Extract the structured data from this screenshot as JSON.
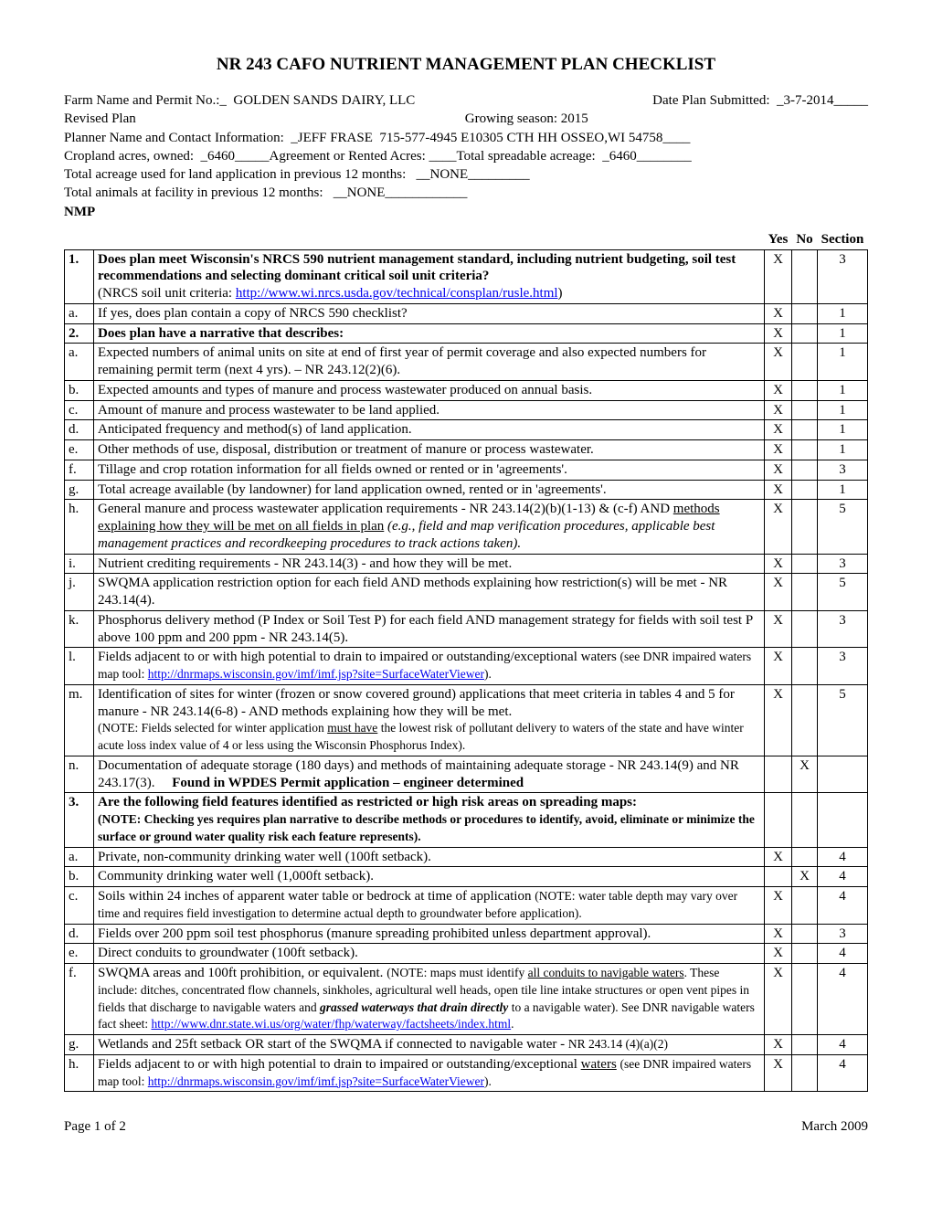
{
  "title": "NR 243 CAFO NUTRIENT MANAGEMENT PLAN CHECKLIST",
  "header": {
    "farm_label": "Farm Name and Permit No.:_  ",
    "farm_value": "GOLDEN SANDS DAIRY, LLC",
    "date_label": "Date Plan Submitted:  ",
    "date_value": "_3-7-2014_____",
    "revised_label": "Revised Plan",
    "growing_label": "Growing season: ",
    "growing_value": "2015",
    "planner_label": "Planner Name and Contact Information:  ",
    "planner_value": "_JEFF FRASE  715-577-4945 E10305 CTH HH OSSEO,WI 54758____",
    "crop_owned_label": "Cropland acres, owned:  ",
    "crop_owned_value": "_6460_____",
    "agreement_label": "Agreement or Rented Acres: ____",
    "spread_label": "Total spreadable acreage:  ",
    "spread_value": "_6460________",
    "total_acreage_label": "Total acreage used for land application in previous 12 months:   ",
    "total_acreage_value": "__NONE_________",
    "total_animals_label": "Total animals at facility in previous 12 months:   ",
    "total_animals_value": "__NONE____________",
    "nmp_label": "NMP"
  },
  "col_headers": {
    "yes": "Yes",
    "no": "No",
    "section": "Section"
  },
  "rows": [
    {
      "idx": "1.",
      "bold": true,
      "yes": "X",
      "no": "",
      "sec": "3",
      "html": "<span class='bold'>Does plan meet Wisconsin's NRCS 590 nutrient management standard, including nutrient budgeting, soil test recommendations and selecting dominant critical soil unit criteria?</span><br> (NRCS soil unit criteria: <a href='#'>http://www.wi.nrcs.usda.gov/technical/consplan/rusle.html</a>)"
    },
    {
      "idx": "a.",
      "yes": "X",
      "no": "",
      "sec": "1",
      "html": "If yes, does plan contain a copy of NRCS 590 checklist?"
    },
    {
      "idx": "2.",
      "bold": true,
      "yes": "X",
      "no": "",
      "sec": "1",
      "html": "<span class='bold'>Does plan have a narrative that describes:</span>"
    },
    {
      "idx": "a.",
      "yes": "X",
      "no": "",
      "sec": "1",
      "html": "Expected numbers of animal units on site at end of first year of permit coverage and also expected numbers for remaining permit term (next 4 yrs). – NR 243.12(2)(6)."
    },
    {
      "idx": "b.",
      "yes": "X",
      "no": "",
      "sec": "1",
      "html": "Expected amounts and types of manure and process wastewater produced on annual basis."
    },
    {
      "idx": "c.",
      "yes": "X",
      "no": "",
      "sec": "1",
      "html": "Amount of manure and process wastewater to be land applied."
    },
    {
      "idx": "d.",
      "yes": "X",
      "no": "",
      "sec": "1",
      "html": "Anticipated frequency and method(s) of land application."
    },
    {
      "idx": "e.",
      "yes": "X",
      "no": "",
      "sec": "1",
      "html": "Other methods of use, disposal, distribution or treatment of manure or process wastewater."
    },
    {
      "idx": "f.",
      "yes": "X",
      "no": "",
      "sec": "3",
      "html": "Tillage and crop rotation information for all fields owned or rented or in 'agreements'."
    },
    {
      "idx": "g.",
      "yes": "X",
      "no": "",
      "sec": "1",
      "html": "Total acreage available (by landowner) for land application owned, rented or in 'agreements'."
    },
    {
      "idx": "h.",
      "yes": "X",
      "no": "",
      "sec": "5",
      "html": "General manure and process wastewater application requirements - NR 243.14(2)(b)(1-13) &amp; (c-f) AND <span class='u'>methods explaining how they will be met on all fields in plan</span> <em>(e.g., field and map verification procedures, applicable best management practices and recordkeeping procedures to track actions taken).</em>"
    },
    {
      "idx": "i.",
      "yes": "X",
      "no": "",
      "sec": "3",
      "html": "Nutrient crediting requirements - NR 243.14(3) - and how they will be met."
    },
    {
      "idx": "j.",
      "yes": "X",
      "no": "",
      "sec": "5",
      "html": "SWQMA application restriction option for each field AND methods explaining how restriction(s) will be met - NR 243.14(4)."
    },
    {
      "idx": "k.",
      "yes": "X",
      "no": "",
      "sec": "3",
      "html": "Phosphorus delivery method (P Index or Soil Test P) for each field AND management strategy for fields with soil test P above 100 ppm and 200 ppm - NR 243.14(5)."
    },
    {
      "idx": "l.",
      "yes": "X",
      "no": "",
      "sec": "3",
      "html": "Fields adjacent to or with high potential to drain to impaired or outstanding/exceptional waters <span class='note'>(see DNR impaired waters map tool: <a href='#'>http://dnrmaps.wisconsin.gov/imf/imf.jsp?site=SurfaceWaterViewer</a>).</span>"
    },
    {
      "idx": "m.",
      "yes": "X",
      "no": "",
      "sec": "5",
      "html": "Identification of sites for winter (frozen or snow covered ground) applications that meet criteria in tables 4 and 5 for manure - NR 243.14(6-8) - AND methods explaining how they will be met.<br><span class='note'>(NOTE: Fields selected for winter application <span class='u'>must have</span> the lowest risk of pollutant delivery to waters of the state and have winter acute loss index value of 4 or less using the Wisconsin Phosphorus Index).</span>"
    },
    {
      "idx": "n.",
      "yes": "",
      "no": "X",
      "sec": "",
      "html": "Documentation of adequate storage (180 days) and methods of maintaining adequate storage - NR 243.14(9) and NR 243.17(3). &nbsp;&nbsp;&nbsp; <span class='bold'>Found in WPDES Permit application – engineer determined</span>"
    },
    {
      "idx": "3.",
      "bold": true,
      "yes": "",
      "no": "",
      "sec": "",
      "html": "<span class='bold'>Are the following field features identified as restricted or high risk areas on spreading maps:<br><span class='note'>(NOTE: Checking yes requires plan narrative to describe methods or procedures to identify, avoid, eliminate or minimize the surface or ground water quality risk each feature represents).</span></span>"
    },
    {
      "idx": "a.",
      "yes": "X",
      "no": "",
      "sec": "4",
      "html": "Private, non-community drinking water well (100ft setback)."
    },
    {
      "idx": "b.",
      "yes": "",
      "no": "X",
      "sec": "4",
      "html": "Community drinking water well (1,000ft setback)."
    },
    {
      "idx": "c.",
      "yes": "X",
      "no": "",
      "sec": "4",
      "html": "Soils within 24 inches of apparent water table or bedrock at time of application <span class='note'>(NOTE: water table depth may vary over time and requires field investigation to determine actual depth to groundwater before application).</span>"
    },
    {
      "idx": "d.",
      "yes": "X",
      "no": "",
      "sec": "3",
      "html": "Fields over 200 ppm soil test phosphorus (manure spreading prohibited unless department approval)."
    },
    {
      "idx": "e.",
      "yes": "X",
      "no": "",
      "sec": "4",
      "html": "Direct conduits to groundwater (100ft setback)."
    },
    {
      "idx": "f.",
      "yes": "X",
      "no": "",
      "sec": "4",
      "html": "SWQMA areas and 100ft prohibition, or equivalent. <span class='note'>(NOTE: maps must identify <span class='u'>all conduits to navigable waters</span>. These include: ditches, concentrated flow channels, sinkholes, agricultural well heads, open tile line intake structures or open vent pipes in fields that discharge to navigable waters and <em><span class='bold'>grassed waterways that drain directly</span></em> to a navigable water). See DNR navigable waters fact sheet: <a href='#'>http://www.dnr.state.wi.us/org/water/fhp/waterway/factsheets/index.html</a>.</span>"
    },
    {
      "idx": "g.",
      "yes": "X",
      "no": "",
      "sec": "4",
      "html": "Wetlands and 25ft setback OR start of the SWQMA if connected to navigable water - <span class='note'>NR 243.14 (4)(a)(2)</span>"
    },
    {
      "idx": "h.",
      "yes": "X",
      "no": "",
      "sec": "4",
      "html": "Fields adjacent to or with high potential to drain to impaired or outstanding/exceptional <span class='u'>waters</span> <span class='note'>(see DNR impaired waters map tool: <a href='#'>http://dnrmaps.wisconsin.gov/imf/imf.jsp?site=SurfaceWaterViewer</a>).</span>"
    }
  ],
  "footer": {
    "left": "Page 1 of 2",
    "right": "March 2009"
  }
}
